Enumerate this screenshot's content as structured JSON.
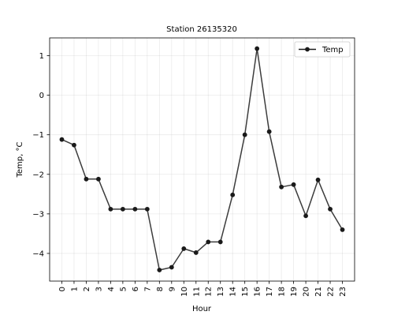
{
  "chart_data": {
    "type": "line",
    "title": "Station 26135320",
    "xlabel": "Hour",
    "ylabel": "Temp, °C",
    "grid": true,
    "legend": {
      "position": "top-right",
      "visible": true
    },
    "xlim": [
      -1,
      24
    ],
    "ylim": [
      -4.7,
      1.45
    ],
    "x": [
      0,
      1,
      2,
      3,
      4,
      5,
      6,
      7,
      8,
      9,
      10,
      11,
      12,
      13,
      14,
      15,
      16,
      17,
      18,
      19,
      20,
      21,
      22,
      23
    ],
    "x_tick_labels": [
      "0",
      "1",
      "2",
      "3",
      "4",
      "5",
      "6",
      "7",
      "8",
      "9",
      "10",
      "11",
      "12",
      "13",
      "14",
      "15",
      "16",
      "17",
      "18",
      "19",
      "20",
      "21",
      "22",
      "23"
    ],
    "y_ticks": [
      1,
      0,
      -1,
      -2,
      -3,
      -4
    ],
    "y_tick_labels": [
      "1",
      "0",
      "−1",
      "−2",
      "−3",
      "−4"
    ],
    "series": [
      {
        "name": "Temp",
        "color": "#1a1a1a",
        "marker": "circle",
        "values": [
          -1.12,
          -1.26,
          -2.12,
          -2.12,
          -2.88,
          -2.88,
          -2.88,
          -2.88,
          -4.42,
          -4.35,
          -3.88,
          -3.98,
          -3.71,
          -3.71,
          -2.52,
          -1.0,
          1.18,
          -0.92,
          -2.32,
          -2.26,
          -3.05,
          -2.14,
          -2.88,
          -3.4
        ]
      }
    ]
  }
}
